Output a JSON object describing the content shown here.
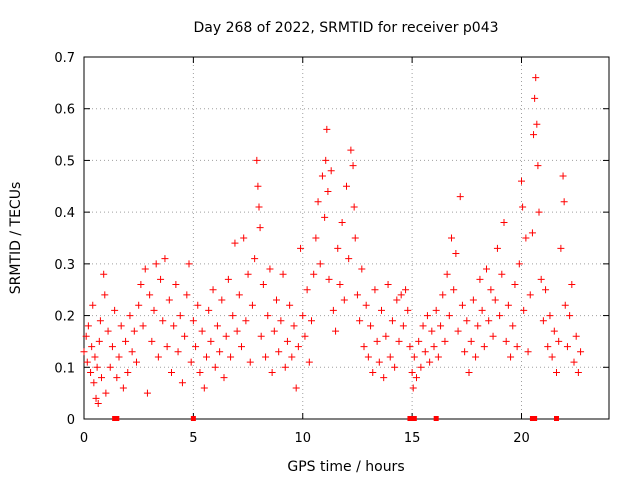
{
  "chart_data": {
    "type": "scatter",
    "title": "Day 268 of 2022, SRMTID for receiver p043",
    "xlabel": "GPS time / hours",
    "ylabel": "SRMTID / TECUs",
    "xlim": [
      0,
      24
    ],
    "ylim": [
      0,
      0.7
    ],
    "grid": true,
    "x_ticks": [
      0,
      5,
      10,
      15,
      20
    ],
    "x_tick_labels": [
      "0",
      "5",
      "10",
      "15",
      "20"
    ],
    "y_ticks": [
      0,
      0.1,
      0.2,
      0.3,
      0.4,
      0.5,
      0.6,
      0.7
    ],
    "y_tick_labels": [
      "0",
      "0.1",
      "0.2",
      "0.3",
      "0.4",
      "0.5",
      "0.6",
      "0.7"
    ],
    "marker": "+",
    "color": "#ff0000",
    "series": [
      {
        "name": "SRMTID",
        "points": [
          [
            0.0,
            0.13
          ],
          [
            0.1,
            0.16
          ],
          [
            0.15,
            0.11
          ],
          [
            0.2,
            0.18
          ],
          [
            0.3,
            0.09
          ],
          [
            0.35,
            0.14
          ],
          [
            0.4,
            0.22
          ],
          [
            0.45,
            0.07
          ],
          [
            0.5,
            0.12
          ],
          [
            0.55,
            0.04
          ],
          [
            0.6,
            0.1
          ],
          [
            0.65,
            0.03
          ],
          [
            0.7,
            0.15
          ],
          [
            0.75,
            0.19
          ],
          [
            0.8,
            0.08
          ],
          [
            0.9,
            0.28
          ],
          [
            0.95,
            0.24
          ],
          [
            1.0,
            0.05
          ],
          [
            1.1,
            0.17
          ],
          [
            1.2,
            0.1
          ],
          [
            1.3,
            0.14
          ],
          [
            1.4,
            0.21
          ],
          [
            1.5,
            0.08
          ],
          [
            1.6,
            0.12
          ],
          [
            1.7,
            0.18
          ],
          [
            1.8,
            0.06
          ],
          [
            1.9,
            0.15
          ],
          [
            2.0,
            0.09
          ],
          [
            2.1,
            0.2
          ],
          [
            2.2,
            0.13
          ],
          [
            2.3,
            0.17
          ],
          [
            2.4,
            0.11
          ],
          [
            2.5,
            0.22
          ],
          [
            2.6,
            0.26
          ],
          [
            2.7,
            0.18
          ],
          [
            2.8,
            0.29
          ],
          [
            2.9,
            0.05
          ],
          [
            3.0,
            0.24
          ],
          [
            3.1,
            0.15
          ],
          [
            3.2,
            0.21
          ],
          [
            3.3,
            0.3
          ],
          [
            3.4,
            0.12
          ],
          [
            3.5,
            0.27
          ],
          [
            3.6,
            0.19
          ],
          [
            3.7,
            0.31
          ],
          [
            3.8,
            0.14
          ],
          [
            3.9,
            0.23
          ],
          [
            4.0,
            0.09
          ],
          [
            4.1,
            0.18
          ],
          [
            4.2,
            0.26
          ],
          [
            4.3,
            0.13
          ],
          [
            4.4,
            0.2
          ],
          [
            4.5,
            0.07
          ],
          [
            4.6,
            0.16
          ],
          [
            4.7,
            0.24
          ],
          [
            4.8,
            0.3
          ],
          [
            4.9,
            0.11
          ],
          [
            5.0,
            0.19
          ],
          [
            5.1,
            0.14
          ],
          [
            5.2,
            0.22
          ],
          [
            5.3,
            0.09
          ],
          [
            5.4,
            0.17
          ],
          [
            5.5,
            0.06
          ],
          [
            5.6,
            0.12
          ],
          [
            5.7,
            0.21
          ],
          [
            5.8,
            0.15
          ],
          [
            5.9,
            0.25
          ],
          [
            6.0,
            0.1
          ],
          [
            6.1,
            0.18
          ],
          [
            6.2,
            0.13
          ],
          [
            6.3,
            0.23
          ],
          [
            6.4,
            0.08
          ],
          [
            6.5,
            0.16
          ],
          [
            6.6,
            0.27
          ],
          [
            6.7,
            0.12
          ],
          [
            6.8,
            0.2
          ],
          [
            6.9,
            0.34
          ],
          [
            7.0,
            0.17
          ],
          [
            7.1,
            0.24
          ],
          [
            7.2,
            0.14
          ],
          [
            7.3,
            0.35
          ],
          [
            7.4,
            0.19
          ],
          [
            7.5,
            0.28
          ],
          [
            7.6,
            0.11
          ],
          [
            7.7,
            0.22
          ],
          [
            7.8,
            0.31
          ],
          [
            7.9,
            0.5
          ],
          [
            7.95,
            0.45
          ],
          [
            8.0,
            0.41
          ],
          [
            8.05,
            0.37
          ],
          [
            8.1,
            0.16
          ],
          [
            8.2,
            0.26
          ],
          [
            8.3,
            0.12
          ],
          [
            8.4,
            0.2
          ],
          [
            8.5,
            0.29
          ],
          [
            8.6,
            0.09
          ],
          [
            8.7,
            0.17
          ],
          [
            8.8,
            0.23
          ],
          [
            8.9,
            0.13
          ],
          [
            9.0,
            0.19
          ],
          [
            9.1,
            0.28
          ],
          [
            9.2,
            0.1
          ],
          [
            9.3,
            0.15
          ],
          [
            9.4,
            0.22
          ],
          [
            9.5,
            0.12
          ],
          [
            9.6,
            0.18
          ],
          [
            9.7,
            0.06
          ],
          [
            9.8,
            0.14
          ],
          [
            9.9,
            0.33
          ],
          [
            10.0,
            0.2
          ],
          [
            10.1,
            0.16
          ],
          [
            10.2,
            0.25
          ],
          [
            10.3,
            0.11
          ],
          [
            10.4,
            0.19
          ],
          [
            10.5,
            0.28
          ],
          [
            10.6,
            0.35
          ],
          [
            10.7,
            0.42
          ],
          [
            10.8,
            0.3
          ],
          [
            10.9,
            0.47
          ],
          [
            11.0,
            0.39
          ],
          [
            11.05,
            0.5
          ],
          [
            11.1,
            0.56
          ],
          [
            11.15,
            0.44
          ],
          [
            11.2,
            0.27
          ],
          [
            11.3,
            0.48
          ],
          [
            11.4,
            0.21
          ],
          [
            11.5,
            0.17
          ],
          [
            11.6,
            0.33
          ],
          [
            11.7,
            0.26
          ],
          [
            11.8,
            0.38
          ],
          [
            11.9,
            0.23
          ],
          [
            12.0,
            0.45
          ],
          [
            12.1,
            0.31
          ],
          [
            12.2,
            0.52
          ],
          [
            12.3,
            0.49
          ],
          [
            12.35,
            0.41
          ],
          [
            12.4,
            0.35
          ],
          [
            12.5,
            0.24
          ],
          [
            12.6,
            0.19
          ],
          [
            12.7,
            0.29
          ],
          [
            12.8,
            0.14
          ],
          [
            12.9,
            0.22
          ],
          [
            13.0,
            0.12
          ],
          [
            13.1,
            0.18
          ],
          [
            13.2,
            0.09
          ],
          [
            13.3,
            0.25
          ],
          [
            13.4,
            0.15
          ],
          [
            13.5,
            0.11
          ],
          [
            13.6,
            0.21
          ],
          [
            13.7,
            0.08
          ],
          [
            13.8,
            0.16
          ],
          [
            13.9,
            0.26
          ],
          [
            14.0,
            0.12
          ],
          [
            14.1,
            0.19
          ],
          [
            14.2,
            0.1
          ],
          [
            14.3,
            0.23
          ],
          [
            14.4,
            0.15
          ],
          [
            14.5,
            0.24
          ],
          [
            14.6,
            0.18
          ],
          [
            14.7,
            0.25
          ],
          [
            14.8,
            0.21
          ],
          [
            14.9,
            0.14
          ],
          [
            15.0,
            0.09
          ],
          [
            15.05,
            0.06
          ],
          [
            15.1,
            0.12
          ],
          [
            15.2,
            0.08
          ],
          [
            15.3,
            0.15
          ],
          [
            15.4,
            0.1
          ],
          [
            15.5,
            0.18
          ],
          [
            15.6,
            0.13
          ],
          [
            15.7,
            0.2
          ],
          [
            15.8,
            0.11
          ],
          [
            15.9,
            0.17
          ],
          [
            16.0,
            0.14
          ],
          [
            16.1,
            0.21
          ],
          [
            16.2,
            0.12
          ],
          [
            16.3,
            0.18
          ],
          [
            16.4,
            0.24
          ],
          [
            16.5,
            0.15
          ],
          [
            16.6,
            0.28
          ],
          [
            16.7,
            0.2
          ],
          [
            16.8,
            0.35
          ],
          [
            16.9,
            0.25
          ],
          [
            17.0,
            0.32
          ],
          [
            17.1,
            0.17
          ],
          [
            17.2,
            0.43
          ],
          [
            17.3,
            0.22
          ],
          [
            17.4,
            0.13
          ],
          [
            17.5,
            0.19
          ],
          [
            17.6,
            0.09
          ],
          [
            17.7,
            0.15
          ],
          [
            17.8,
            0.23
          ],
          [
            17.9,
            0.12
          ],
          [
            18.0,
            0.18
          ],
          [
            18.1,
            0.27
          ],
          [
            18.2,
            0.21
          ],
          [
            18.3,
            0.14
          ],
          [
            18.4,
            0.29
          ],
          [
            18.5,
            0.19
          ],
          [
            18.6,
            0.25
          ],
          [
            18.7,
            0.16
          ],
          [
            18.8,
            0.23
          ],
          [
            18.9,
            0.33
          ],
          [
            19.0,
            0.2
          ],
          [
            19.1,
            0.28
          ],
          [
            19.2,
            0.38
          ],
          [
            19.3,
            0.15
          ],
          [
            19.4,
            0.22
          ],
          [
            19.5,
            0.12
          ],
          [
            19.6,
            0.18
          ],
          [
            19.7,
            0.26
          ],
          [
            19.8,
            0.14
          ],
          [
            19.9,
            0.3
          ],
          [
            20.0,
            0.46
          ],
          [
            20.05,
            0.41
          ],
          [
            20.1,
            0.21
          ],
          [
            20.2,
            0.35
          ],
          [
            20.3,
            0.13
          ],
          [
            20.4,
            0.24
          ],
          [
            20.5,
            0.36
          ],
          [
            20.55,
            0.55
          ],
          [
            20.6,
            0.62
          ],
          [
            20.65,
            0.66
          ],
          [
            20.7,
            0.57
          ],
          [
            20.75,
            0.49
          ],
          [
            20.8,
            0.4
          ],
          [
            20.9,
            0.27
          ],
          [
            21.0,
            0.19
          ],
          [
            21.1,
            0.25
          ],
          [
            21.2,
            0.14
          ],
          [
            21.3,
            0.2
          ],
          [
            21.4,
            0.12
          ],
          [
            21.5,
            0.17
          ],
          [
            21.6,
            0.09
          ],
          [
            21.7,
            0.15
          ],
          [
            21.8,
            0.33
          ],
          [
            21.9,
            0.47
          ],
          [
            21.95,
            0.42
          ],
          [
            22.0,
            0.22
          ],
          [
            22.1,
            0.14
          ],
          [
            22.2,
            0.2
          ],
          [
            22.3,
            0.26
          ],
          [
            22.4,
            0.11
          ],
          [
            22.5,
            0.16
          ],
          [
            22.6,
            0.09
          ],
          [
            22.7,
            0.13
          ]
        ]
      }
    ],
    "zero_points_x": [
      1.4,
      1.5,
      5.0,
      14.9,
      15.1,
      16.1,
      20.5,
      20.6,
      21.6
    ]
  }
}
